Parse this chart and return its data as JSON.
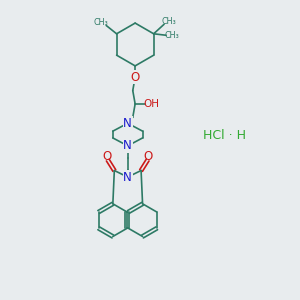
{
  "background_color": "#e8ecee",
  "bond_color": "#2d7a65",
  "nitrogen_color": "#1a1acc",
  "oxygen_color": "#cc1a1a",
  "hcl_color": "#33aa33",
  "figsize": [
    3.0,
    3.0
  ],
  "dpi": 100,
  "lw": 1.2,
  "hcl_text": "HCl · H",
  "oh_text": "OH",
  "o_text": "O",
  "n_text": "N"
}
